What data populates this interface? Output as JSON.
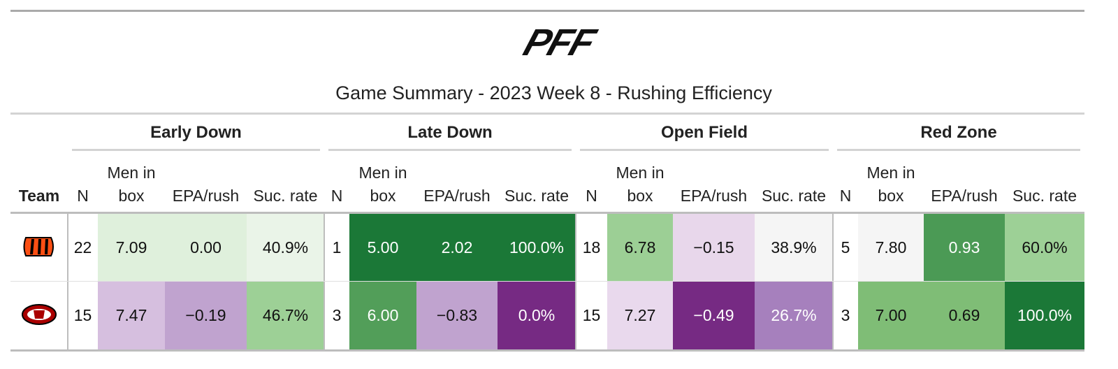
{
  "logo": "PFF",
  "title": "Game Summary - 2023 Week 8 - Rushing Efficiency",
  "team_header": "Team",
  "groups": [
    {
      "name": "Early Down",
      "columns": [
        "N",
        "Men in box",
        "EPA/rush",
        "Suc. rate"
      ]
    },
    {
      "name": "Late Down",
      "columns": [
        "N",
        "Men in box",
        "EPA/rush",
        "Suc. rate"
      ]
    },
    {
      "name": "Open Field",
      "columns": [
        "N",
        "Men in box",
        "EPA/rush",
        "Suc. rate"
      ]
    },
    {
      "name": "Red Zone",
      "columns": [
        "N",
        "Men in box",
        "EPA/rush",
        "Suc. rate"
      ]
    }
  ],
  "rows": [
    {
      "cells": [
        "22",
        "7.09",
        "0.00",
        "40.9%",
        "1",
        "5.00",
        "2.02",
        "100.0%",
        "18",
        "6.78",
        "−0.15",
        "38.9%",
        "5",
        "7.80",
        "0.93",
        "60.0%"
      ],
      "colors": [
        "#ffffff",
        "#dff0dc",
        "#dff0dc",
        "#eaf4e8",
        "#ffffff",
        "#1b7837",
        "#1b7837",
        "#1b7837",
        "#ffffff",
        "#9ccf95",
        "#e8d7eb",
        "#f5f5f5",
        "#ffffff",
        "#f5f5f5",
        "#4b9a55",
        "#9dd096"
      ]
    },
    {
      "cells": [
        "15",
        "7.47",
        "−0.19",
        "46.7%",
        "3",
        "6.00",
        "−0.83",
        "0.0%",
        "15",
        "7.27",
        "−0.49",
        "26.7%",
        "3",
        "7.00",
        "0.69",
        "100.0%"
      ],
      "colors": [
        "#ffffff",
        "#d6bfdf",
        "#c0a3cf",
        "#9dd096",
        "#ffffff",
        "#529e59",
        "#c0a3cf",
        "#762a83",
        "#ffffff",
        "#e9d9ed",
        "#762a83",
        "#a680bd",
        "#ffffff",
        "#7fbd76",
        "#7fbd76",
        "#1b7837"
      ]
    }
  ]
}
